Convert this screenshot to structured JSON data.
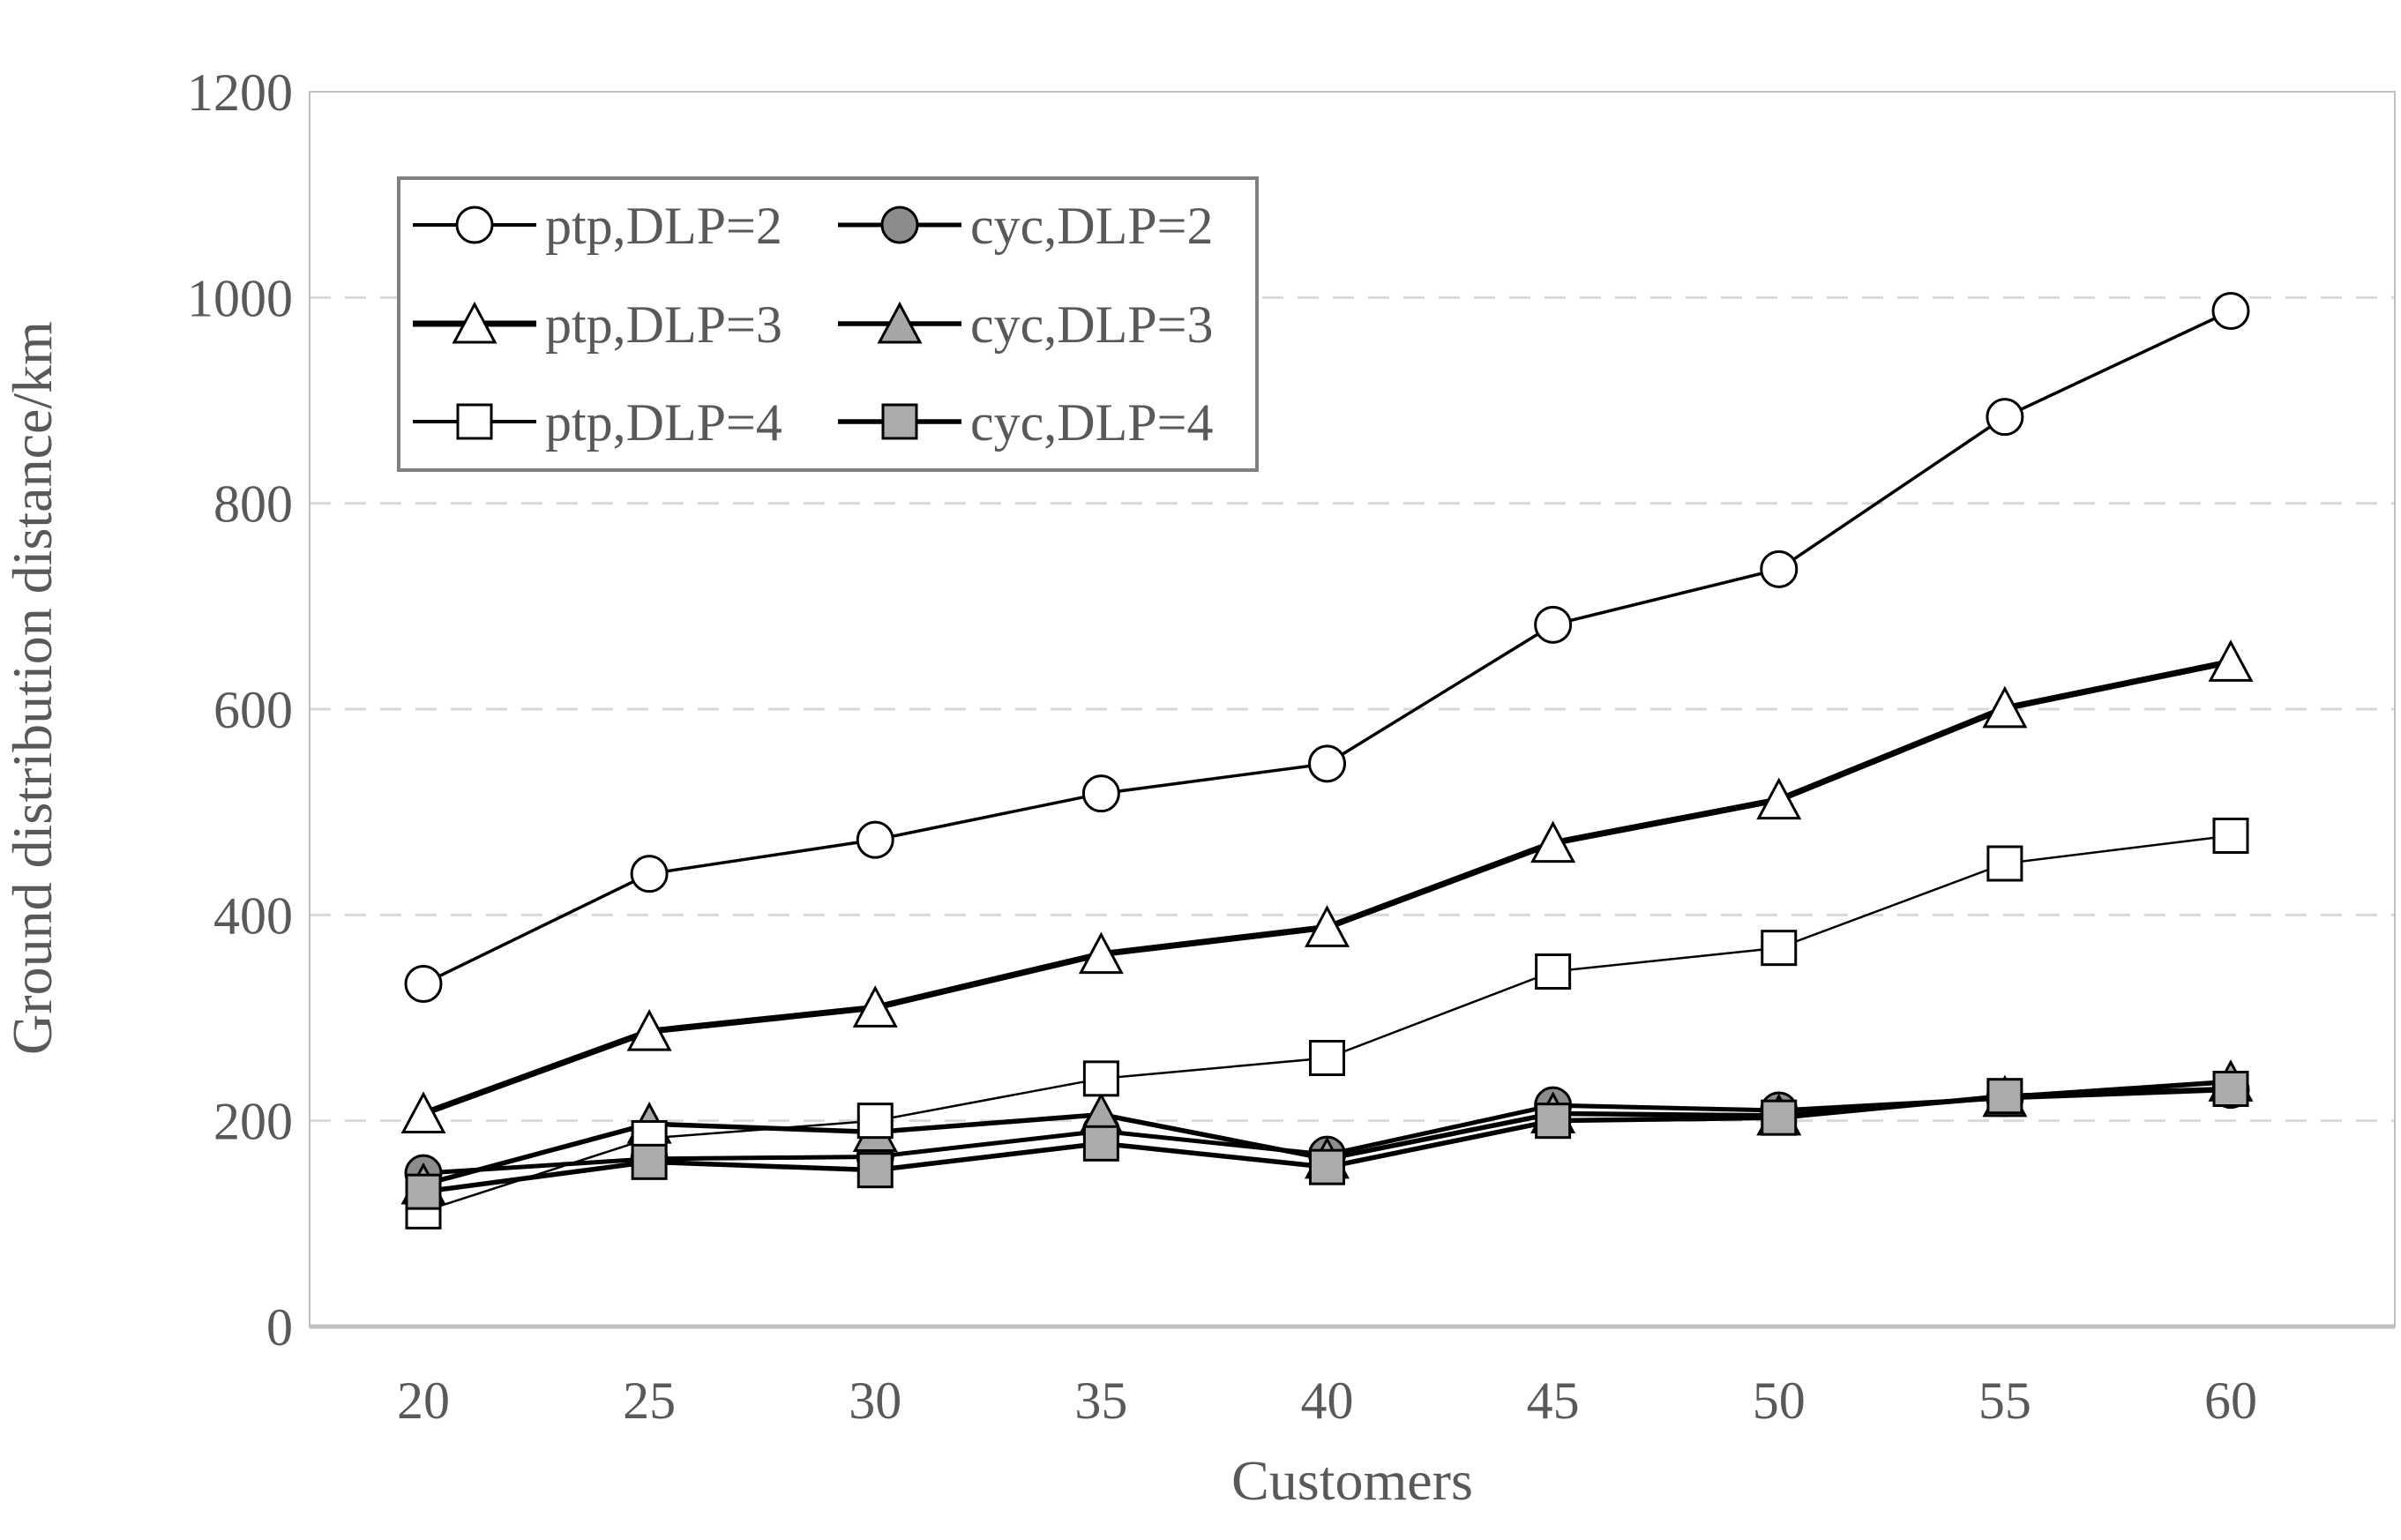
{
  "chart_data": {
    "type": "line",
    "title": "",
    "xlabel": "Customers",
    "ylabel": "Ground distribution distance/km",
    "x": [
      20,
      25,
      30,
      35,
      40,
      45,
      50,
      55,
      60
    ],
    "xlim": [
      20,
      60
    ],
    "ylim": [
      0,
      1200
    ],
    "ytick_step": 200,
    "grid": "horizontal-dashed",
    "legend_position": "top-left",
    "series": [
      {
        "name": "ptp,DLP=2",
        "marker": "circle",
        "marker_fill": "#ffffff",
        "line_color": "#000000",
        "line_width": 3.5,
        "values": [
          333,
          440,
          473,
          518,
          547,
          682,
          736,
          884,
          987
        ]
      },
      {
        "name": "cyc,DLP=2",
        "marker": "circle",
        "marker_fill": "#8c8c8c",
        "line_color": "#000000",
        "line_width": 5,
        "values": [
          149,
          163,
          165,
          190,
          167,
          215,
          210,
          222,
          230
        ]
      },
      {
        "name": "ptp,DLP=3",
        "marker": "triangle",
        "marker_fill": "#ffffff",
        "line_color": "#000000",
        "line_width": 7,
        "values": [
          207,
          287,
          310,
          362,
          388,
          470,
          512,
          601,
          646
        ]
      },
      {
        "name": "cyc,DLP=3",
        "marker": "triangle",
        "marker_fill": "#a6a6a6",
        "line_color": "#000000",
        "line_width": 5.5,
        "values": [
          138,
          197,
          189,
          206,
          163,
          207,
          205,
          223,
          238
        ]
      },
      {
        "name": "ptp,DLP=4",
        "marker": "square",
        "marker_fill": "#ffffff",
        "line_color": "#000000",
        "line_width": 2.5,
        "values": [
          112,
          183,
          200,
          241,
          261,
          345,
          368,
          450,
          477
        ]
      },
      {
        "name": "cyc,DLP=4",
        "marker": "square",
        "marker_fill": "#ababab",
        "line_color": "#000000",
        "line_width": 5.5,
        "values": [
          131,
          160,
          152,
          178,
          155,
          200,
          203,
          224,
          231
        ]
      }
    ],
    "legend_rows": [
      [
        "ptp,DLP=2",
        "cyc,DLP=2"
      ],
      [
        "ptp,DLP=3",
        "cyc,DLP=3"
      ],
      [
        "ptp,DLP=4",
        "cyc,DLP=4"
      ]
    ],
    "colors": {
      "background": "#ffffff",
      "plot_border": "#bfbfbf",
      "axis_line": "#bfbfbf",
      "gridline": "#d9d9d9",
      "tick_text": "#595959",
      "legend_border": "#808080",
      "marker_stroke": "#000000"
    }
  }
}
